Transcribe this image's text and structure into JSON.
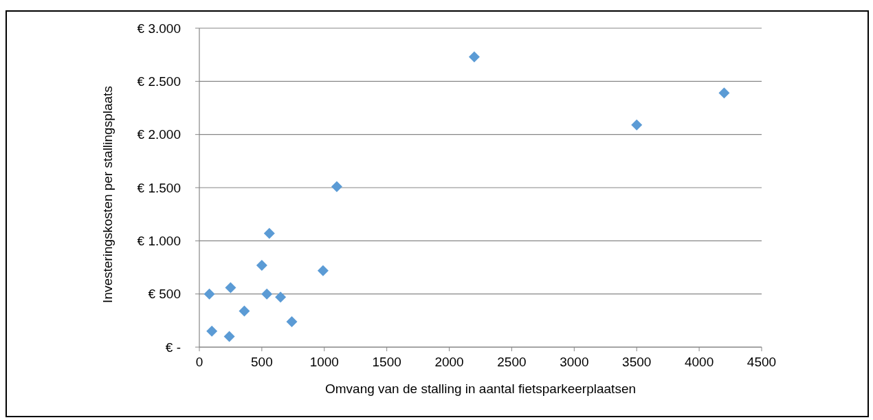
{
  "chart_data": {
    "type": "scatter",
    "xlabel": "Omvang van de stalling in aantal fietsparkeerplaatsen",
    "ylabel": "Investeringskosten per stallingsplaats",
    "x": [
      80,
      100,
      240,
      250,
      360,
      500,
      540,
      560,
      650,
      740,
      990,
      1100,
      2200,
      3500,
      4200
    ],
    "series": [
      {
        "color": "#5b9bd5",
        "values": [
          500,
          150,
          100,
          560,
          340,
          770,
          500,
          1070,
          470,
          240,
          720,
          1510,
          2730,
          2090,
          2390
        ]
      }
    ],
    "xlim": [
      0,
      4500
    ],
    "xticks": [
      0,
      500,
      1000,
      1500,
      2000,
      2500,
      3000,
      3500,
      4000,
      4500
    ],
    "ylim": [
      0,
      3000
    ],
    "yticks": [
      {
        "value": 0,
        "label": "€ -"
      },
      {
        "value": 500,
        "label": "€ 500"
      },
      {
        "value": 1000,
        "label": "€ 1.000"
      },
      {
        "value": 1500,
        "label": "€ 1.500"
      },
      {
        "value": 2000,
        "label": "€ 2.000"
      },
      {
        "value": 2500,
        "label": "€ 2.500"
      },
      {
        "value": 3000,
        "label": "€ 3.000"
      }
    ],
    "grid": "y",
    "marker": "diamond"
  }
}
